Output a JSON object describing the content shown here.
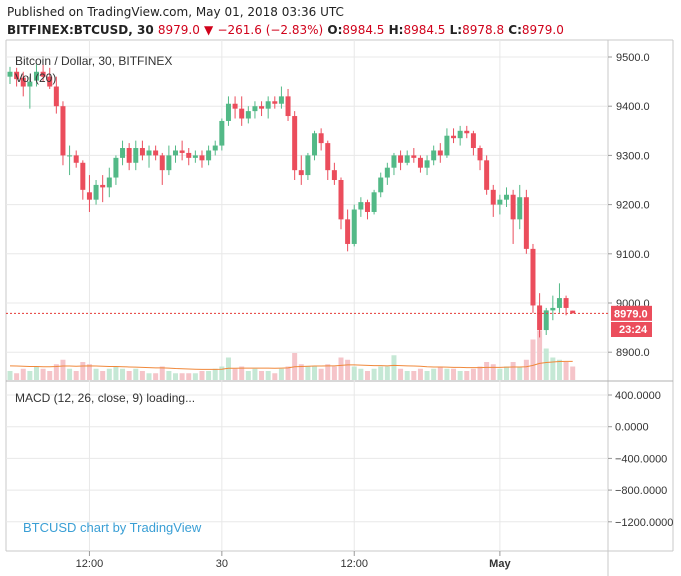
{
  "header": {
    "published": "Published on TradingView.com, May 01, 2018 03:36 UTC",
    "symbol": "BITFINEX:BTCUSD, 30",
    "price": "8979.0",
    "change": "−261.6 (−2.83%)",
    "o_label": "O:",
    "o_val": "8984.5",
    "h_label": "H:",
    "h_val": "8984.5",
    "l_label": "L:",
    "l_val": "8978.8",
    "c_label": "C:",
    "c_val": "8979.0"
  },
  "legend": {
    "title": "Bitcoin / Dollar, 30, BITFINEX",
    "volume": "Vol (20)",
    "macd": "MACD (12, 26, close, 9) loading..."
  },
  "watermark": "BTCUSD chart by TradingView",
  "price_axis": {
    "ticks": [
      "9500.0",
      "9400.0",
      "9300.0",
      "9200.0",
      "9100.0",
      "9000.0",
      "8900.0"
    ],
    "current": "8979.0",
    "countdown": "23:24"
  },
  "macd_axis": {
    "ticks": [
      "400.0000",
      "0.0000",
      "−400.0000",
      "−800.0000",
      "−1200.0000"
    ]
  },
  "time_axis": {
    "ticks": [
      "12:00",
      "30",
      "12:00",
      "May"
    ]
  },
  "colors": {
    "up": "#53b987",
    "down": "#eb4d5c",
    "vol_up": "#c5e8d5",
    "vol_down": "#f5c4c9",
    "ma": "#f0883a",
    "grid": "#e8e8e8",
    "current_line": "#e53935",
    "watermark": "#3a9fd5"
  },
  "chart_data": {
    "type": "candlestick",
    "symbol": "BTCUSD",
    "exchange": "BITFINEX",
    "interval": "30",
    "ylim": [
      8855,
      9540
    ],
    "candles": [
      {
        "o": 9460,
        "h": 9480,
        "l": 9445,
        "c": 9470
      },
      {
        "o": 9470,
        "h": 9478,
        "l": 9440,
        "c": 9455
      },
      {
        "o": 9458,
        "h": 9470,
        "l": 9420,
        "c": 9440
      },
      {
        "o": 9440,
        "h": 9460,
        "l": 9395,
        "c": 9450
      },
      {
        "o": 9452,
        "h": 9485,
        "l": 9440,
        "c": 9470
      },
      {
        "o": 9470,
        "h": 9485,
        "l": 9450,
        "c": 9460
      },
      {
        "o": 9460,
        "h": 9478,
        "l": 9435,
        "c": 9440
      },
      {
        "o": 9440,
        "h": 9460,
        "l": 9385,
        "c": 9400
      },
      {
        "o": 9400,
        "h": 9410,
        "l": 9280,
        "c": 9300
      },
      {
        "o": 9300,
        "h": 9320,
        "l": 9260,
        "c": 9300
      },
      {
        "o": 9300,
        "h": 9310,
        "l": 9275,
        "c": 9285
      },
      {
        "o": 9285,
        "h": 9290,
        "l": 9210,
        "c": 9230
      },
      {
        "o": 9225,
        "h": 9260,
        "l": 9185,
        "c": 9210
      },
      {
        "o": 9210,
        "h": 9250,
        "l": 9200,
        "c": 9240
      },
      {
        "o": 9240,
        "h": 9260,
        "l": 9205,
        "c": 9235
      },
      {
        "o": 9235,
        "h": 9275,
        "l": 9215,
        "c": 9255
      },
      {
        "o": 9255,
        "h": 9300,
        "l": 9240,
        "c": 9295
      },
      {
        "o": 9295,
        "h": 9330,
        "l": 9280,
        "c": 9315
      },
      {
        "o": 9315,
        "h": 9325,
        "l": 9270,
        "c": 9285
      },
      {
        "o": 9285,
        "h": 9330,
        "l": 9270,
        "c": 9315
      },
      {
        "o": 9315,
        "h": 9330,
        "l": 9290,
        "c": 9300
      },
      {
        "o": 9300,
        "h": 9320,
        "l": 9275,
        "c": 9310
      },
      {
        "o": 9310,
        "h": 9320,
        "l": 9290,
        "c": 9300
      },
      {
        "o": 9300,
        "h": 9305,
        "l": 9240,
        "c": 9270
      },
      {
        "o": 9270,
        "h": 9320,
        "l": 9260,
        "c": 9300
      },
      {
        "o": 9300,
        "h": 9320,
        "l": 9285,
        "c": 9310
      },
      {
        "o": 9310,
        "h": 9330,
        "l": 9290,
        "c": 9305
      },
      {
        "o": 9305,
        "h": 9315,
        "l": 9280,
        "c": 9295
      },
      {
        "o": 9295,
        "h": 9310,
        "l": 9285,
        "c": 9300
      },
      {
        "o": 9300,
        "h": 9310,
        "l": 9275,
        "c": 9290
      },
      {
        "o": 9290,
        "h": 9320,
        "l": 9280,
        "c": 9310
      },
      {
        "o": 9310,
        "h": 9330,
        "l": 9300,
        "c": 9320
      },
      {
        "o": 9320,
        "h": 9375,
        "l": 9310,
        "c": 9370
      },
      {
        "o": 9370,
        "h": 9420,
        "l": 9360,
        "c": 9405
      },
      {
        "o": 9405,
        "h": 9420,
        "l": 9375,
        "c": 9395
      },
      {
        "o": 9395,
        "h": 9420,
        "l": 9360,
        "c": 9375
      },
      {
        "o": 9375,
        "h": 9400,
        "l": 9365,
        "c": 9390
      },
      {
        "o": 9390,
        "h": 9410,
        "l": 9375,
        "c": 9400
      },
      {
        "o": 9400,
        "h": 9410,
        "l": 9380,
        "c": 9395
      },
      {
        "o": 9395,
        "h": 9420,
        "l": 9375,
        "c": 9410
      },
      {
        "o": 9410,
        "h": 9420,
        "l": 9395,
        "c": 9405
      },
      {
        "o": 9405,
        "h": 9440,
        "l": 9395,
        "c": 9420
      },
      {
        "o": 9420,
        "h": 9435,
        "l": 9370,
        "c": 9380
      },
      {
        "o": 9380,
        "h": 9390,
        "l": 9250,
        "c": 9270
      },
      {
        "o": 9270,
        "h": 9300,
        "l": 9240,
        "c": 9260
      },
      {
        "o": 9260,
        "h": 9305,
        "l": 9250,
        "c": 9300
      },
      {
        "o": 9300,
        "h": 9350,
        "l": 9290,
        "c": 9345
      },
      {
        "o": 9345,
        "h": 9355,
        "l": 9310,
        "c": 9325
      },
      {
        "o": 9325,
        "h": 9330,
        "l": 9250,
        "c": 9270
      },
      {
        "o": 9270,
        "h": 9285,
        "l": 9240,
        "c": 9250
      },
      {
        "o": 9250,
        "h": 9255,
        "l": 9150,
        "c": 9170
      },
      {
        "o": 9170,
        "h": 9190,
        "l": 9105,
        "c": 9120
      },
      {
        "o": 9120,
        "h": 9200,
        "l": 9115,
        "c": 9190
      },
      {
        "o": 9190,
        "h": 9215,
        "l": 9175,
        "c": 9205
      },
      {
        "o": 9205,
        "h": 9210,
        "l": 9170,
        "c": 9185
      },
      {
        "o": 9185,
        "h": 9230,
        "l": 9180,
        "c": 9225
      },
      {
        "o": 9225,
        "h": 9265,
        "l": 9215,
        "c": 9255
      },
      {
        "o": 9255,
        "h": 9285,
        "l": 9240,
        "c": 9275
      },
      {
        "o": 9275,
        "h": 9305,
        "l": 9260,
        "c": 9300
      },
      {
        "o": 9300,
        "h": 9310,
        "l": 9270,
        "c": 9285
      },
      {
        "o": 9285,
        "h": 9310,
        "l": 9280,
        "c": 9300
      },
      {
        "o": 9300,
        "h": 9315,
        "l": 9285,
        "c": 9295
      },
      {
        "o": 9295,
        "h": 9300,
        "l": 9265,
        "c": 9275
      },
      {
        "o": 9275,
        "h": 9300,
        "l": 9260,
        "c": 9290
      },
      {
        "o": 9290,
        "h": 9320,
        "l": 9280,
        "c": 9310
      },
      {
        "o": 9310,
        "h": 9325,
        "l": 9285,
        "c": 9300
      },
      {
        "o": 9300,
        "h": 9355,
        "l": 9295,
        "c": 9340
      },
      {
        "o": 9340,
        "h": 9355,
        "l": 9325,
        "c": 9335
      },
      {
        "o": 9335,
        "h": 9360,
        "l": 9320,
        "c": 9350
      },
      {
        "o": 9350,
        "h": 9360,
        "l": 9335,
        "c": 9345
      },
      {
        "o": 9345,
        "h": 9350,
        "l": 9300,
        "c": 9315
      },
      {
        "o": 9315,
        "h": 9320,
        "l": 9270,
        "c": 9290
      },
      {
        "o": 9290,
        "h": 9300,
        "l": 9220,
        "c": 9230
      },
      {
        "o": 9230,
        "h": 9240,
        "l": 9175,
        "c": 9200
      },
      {
        "o": 9200,
        "h": 9220,
        "l": 9180,
        "c": 9210
      },
      {
        "o": 9210,
        "h": 9235,
        "l": 9195,
        "c": 9220
      },
      {
        "o": 9220,
        "h": 9230,
        "l": 9120,
        "c": 9170
      },
      {
        "o": 9170,
        "h": 9240,
        "l": 9150,
        "c": 9215
      },
      {
        "o": 9215,
        "h": 9230,
        "l": 9100,
        "c": 9110
      },
      {
        "o": 9110,
        "h": 9120,
        "l": 8980,
        "c": 8995
      },
      {
        "o": 8995,
        "h": 9020,
        "l": 8930,
        "c": 8945
      },
      {
        "o": 8945,
        "h": 8990,
        "l": 8935,
        "c": 8985
      },
      {
        "o": 8985,
        "h": 9015,
        "l": 8965,
        "c": 8990
      },
      {
        "o": 8990,
        "h": 9040,
        "l": 8980,
        "c": 9010
      },
      {
        "o": 9010,
        "h": 9015,
        "l": 8975,
        "c": 8990
      },
      {
        "o": 8984.5,
        "h": 8984.5,
        "l": 8978.8,
        "c": 8979
      }
    ],
    "volume": [
      4,
      3,
      5,
      4,
      6,
      5,
      4,
      7,
      9,
      5,
      4,
      8,
      7,
      5,
      4,
      5,
      6,
      5,
      4,
      5,
      4,
      3,
      3,
      6,
      4,
      3,
      3,
      3,
      3,
      4,
      4,
      5,
      6,
      10,
      5,
      6,
      4,
      5,
      4,
      4,
      3,
      5,
      6,
      12,
      7,
      6,
      6,
      5,
      7,
      6,
      10,
      9,
      6,
      5,
      4,
      5,
      6,
      6,
      11,
      5,
      4,
      4,
      5,
      4,
      5,
      6,
      5,
      5,
      4,
      4,
      5,
      6,
      8,
      7,
      5,
      6,
      8,
      6,
      9,
      18,
      22,
      14,
      10,
      9,
      8,
      6
    ],
    "volume_ma": [
      6.3,
      6.2,
      6.1,
      6.0,
      6.0,
      5.9,
      5.9,
      6.0,
      6.2,
      6.2,
      6.1,
      6.2,
      6.3,
      6.2,
      6.1,
      6.0,
      6.0,
      5.9,
      5.8,
      5.7,
      5.6,
      5.5,
      5.4,
      5.4,
      5.3,
      5.1,
      5.0,
      4.9,
      4.8,
      4.7,
      4.7,
      4.7,
      4.8,
      5.2,
      5.2,
      5.3,
      5.3,
      5.3,
      5.3,
      5.3,
      5.2,
      5.3,
      5.4,
      5.9,
      6.0,
      6.1,
      6.2,
      6.2,
      6.3,
      6.3,
      6.5,
      6.7,
      6.7,
      6.6,
      6.5,
      6.4,
      6.4,
      6.3,
      6.5,
      6.4,
      6.3,
      6.2,
      6.1,
      5.9,
      5.8,
      5.8,
      5.7,
      5.6,
      5.6,
      5.5,
      5.5,
      5.5,
      5.6,
      5.6,
      5.6,
      5.7,
      5.8,
      5.8,
      5.9,
      6.5,
      7.4,
      7.8,
      8.0,
      8.2,
      8.3,
      8.3
    ],
    "price_ticks": [
      9500,
      9400,
      9300,
      9200,
      9100,
      9000,
      8900
    ],
    "macd_ticks": [
      400,
      0,
      -400,
      -800,
      -1200
    ],
    "time_ticks": [
      {
        "label": "12:00",
        "index": 12
      },
      {
        "label": "30",
        "index": 32
      },
      {
        "label": "12:00",
        "index": 52
      },
      {
        "label": "May",
        "index": 74
      }
    ],
    "current_price": 8979.0
  }
}
